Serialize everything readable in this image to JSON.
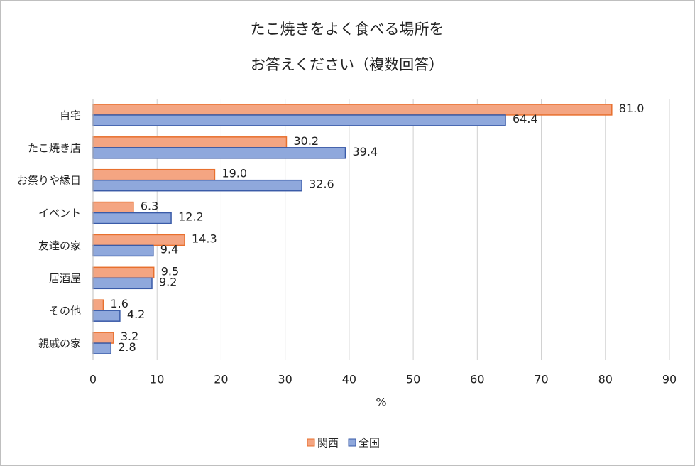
{
  "chart_data": {
    "type": "bar",
    "orientation": "horizontal",
    "title": [
      "たこ焼きをよく食べる場所を",
      "お答えください（複数回答）"
    ],
    "x_label": "%",
    "categories": [
      "自宅",
      "たこ焼き店",
      "お祭りや縁日",
      "イベント",
      "友達の家",
      "居酒屋",
      "その他",
      "親戚の家"
    ],
    "series": [
      {
        "name": "関西",
        "color": "#f4a582",
        "edge": "#e8702e",
        "values": [
          81.0,
          30.2,
          19.0,
          6.3,
          14.3,
          9.5,
          1.6,
          3.2
        ],
        "value_labels": [
          "81.0",
          "30.2",
          "19.0",
          "6.3",
          "14.3",
          "9.5",
          "1.6",
          "3.2"
        ]
      },
      {
        "name": "全国",
        "color": "#8fa8dc",
        "edge": "#3a5ba8",
        "values": [
          64.4,
          39.4,
          32.6,
          12.2,
          9.4,
          9.2,
          4.2,
          2.8
        ],
        "value_labels": [
          "64.4",
          "39.4",
          "32.6",
          "12.2",
          "9.4",
          "9.2",
          "4.2",
          "2.8"
        ]
      }
    ],
    "xlim": [
      0,
      90
    ],
    "xticks": [
      0,
      10,
      20,
      30,
      40,
      50,
      60,
      70,
      80,
      90
    ],
    "grid": true,
    "legend": "bottom"
  }
}
